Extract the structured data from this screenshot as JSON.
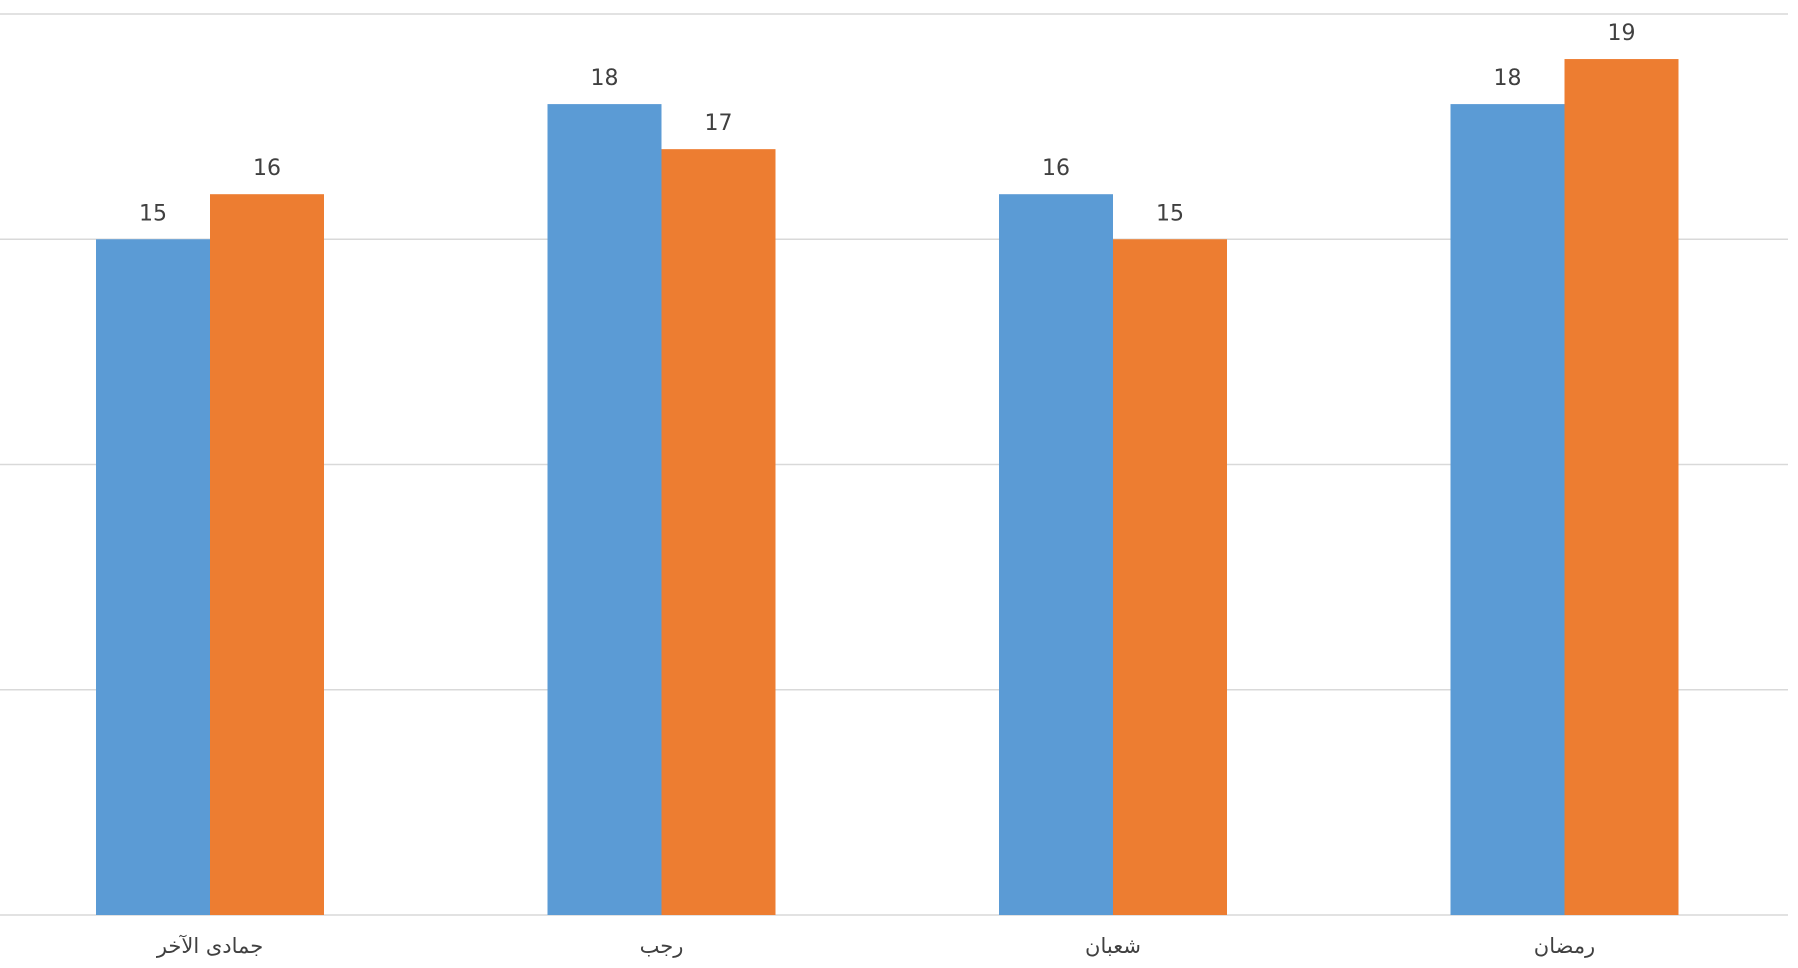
{
  "chart_data": {
    "type": "bar",
    "categories": [
      "جمادى الآخر",
      "رجب",
      "شعبان",
      "رمضان"
    ],
    "series": [
      {
        "values": [
          15,
          18,
          16,
          18
        ],
        "color": "#5b9bd5"
      },
      {
        "values": [
          16,
          17,
          15,
          19
        ],
        "color": "#ed7d31"
      }
    ],
    "title": "",
    "xlabel": "",
    "ylabel": "",
    "ylim": [
      0,
      20
    ],
    "ytick_step": 5,
    "grid": true,
    "legend": "none",
    "data_labels": true
  }
}
